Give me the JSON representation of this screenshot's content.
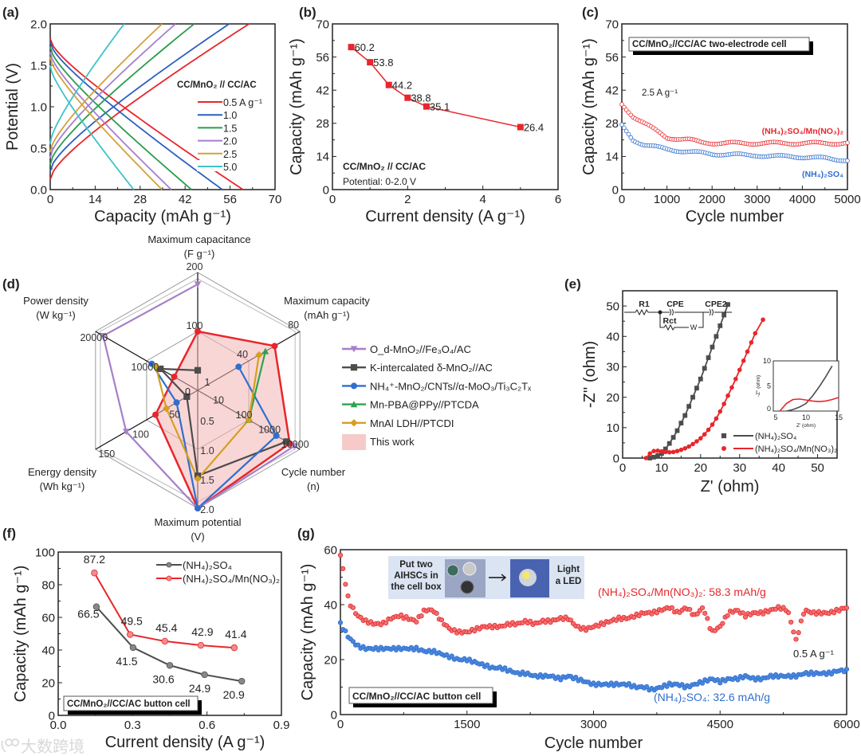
{
  "figure": {
    "panel_labels": [
      "(a)",
      "(b)",
      "(c)",
      "(d)",
      "(e)",
      "(f)",
      "(g)"
    ],
    "watermark": "大数跨境"
  },
  "chart_data": [
    {
      "id": "a",
      "type": "line",
      "xlabel": "Capacity (mAh g⁻¹)",
      "ylabel": "Potential (V)",
      "xlim": [
        0,
        70
      ],
      "ylim": [
        0,
        2
      ],
      "xticks": [
        "0",
        "14",
        "28",
        "42",
        "56",
        "70"
      ],
      "yticks": [
        "0.0",
        "0.5",
        "1.0",
        "1.5",
        "2.0"
      ],
      "legend_title": "CC/MnO₂ // CC/AC",
      "legend_position": "right",
      "series": [
        {
          "name": "0.5  A g⁻¹",
          "color": "#e8262b",
          "charge_start_V": 0.12,
          "charge_end_capacity": 61.9,
          "discharge_start_V": 1.82,
          "discharge_end_capacity": 60.0
        },
        {
          "name": "1.0",
          "color": "#2c5fbf",
          "charge_start_V": 0.22,
          "charge_end_capacity": 55.7,
          "discharge_start_V": 1.78,
          "discharge_end_capacity": 53.6
        },
        {
          "name": "1.5",
          "color": "#2a9d4a",
          "charge_start_V": 0.3,
          "charge_end_capacity": 44.8,
          "discharge_start_V": 1.72,
          "discharge_end_capacity": 44.0
        },
        {
          "name": "2.0",
          "color": "#a57fcf",
          "charge_start_V": 0.38,
          "charge_end_capacity": 39.0,
          "discharge_start_V": 1.66,
          "discharge_end_capacity": 37.7
        },
        {
          "name": "2.5",
          "color": "#d4a13a",
          "charge_start_V": 0.45,
          "charge_end_capacity": 34.8,
          "discharge_start_V": 1.6,
          "discharge_end_capacity": 34.8
        },
        {
          "name": "5.0",
          "color": "#3fc3c9",
          "charge_start_V": 0.55,
          "charge_end_capacity": 23.0,
          "discharge_start_V": 1.5,
          "discharge_end_capacity": 26.0
        }
      ]
    },
    {
      "id": "b",
      "type": "line",
      "xlabel": "Current density (A g⁻¹)",
      "ylabel": "Capacity (mAh g⁻¹)",
      "xlim": [
        0,
        6
      ],
      "ylim": [
        0,
        70
      ],
      "xticks": [
        "0",
        "2",
        "4",
        "6"
      ],
      "yticks": [
        "0",
        "14",
        "28",
        "42",
        "56",
        "70"
      ],
      "x": [
        0.5,
        1.0,
        1.5,
        2.0,
        2.5,
        5.0
      ],
      "values": [
        60.2,
        53.8,
        44.2,
        38.8,
        35.1,
        26.4
      ],
      "data_labels": [
        "60.2",
        "53.8",
        "44.2",
        "38.8",
        "35.1",
        "26.4"
      ],
      "color": "#e8262b",
      "annotations": [
        "CC/MnO₂ // CC/AC",
        "Potential: 0-2.0 V"
      ]
    },
    {
      "id": "c",
      "type": "scatter",
      "xlabel": "Cycle number",
      "ylabel": "Capacity (mAh g⁻¹)",
      "xlim": [
        0,
        5000
      ],
      "ylim": [
        0,
        70
      ],
      "xticks": [
        "0",
        "1000",
        "2000",
        "3000",
        "4000",
        "5000"
      ],
      "yticks": [
        "0",
        "14",
        "28",
        "42",
        "56",
        "70"
      ],
      "x": [
        0,
        250,
        500,
        750,
        1000,
        1250,
        1500,
        1750,
        2000,
        2250,
        2500,
        2750,
        3000,
        3250,
        3500,
        3750,
        4000,
        4250,
        4500,
        4750,
        5000
      ],
      "series": [
        {
          "name": "(NH₄)₂SO₄/Mn(NO₃)₂",
          "color": "#e8262b",
          "values": [
            36,
            31,
            28,
            25,
            22,
            21.5,
            21,
            20,
            19.7,
            19.6,
            19.6,
            19.6,
            19.6,
            19.6,
            19.6,
            19.6,
            19.6,
            19.6,
            19.6,
            19.6,
            19.6
          ]
        },
        {
          "name": "(NH₄)₂SO₄",
          "color": "#2f6fcf",
          "values": [
            27,
            21,
            19,
            18,
            17,
            16.5,
            16,
            15.5,
            15,
            15,
            14.8,
            14.5,
            14.5,
            14.2,
            14,
            14,
            13.8,
            13.5,
            13.2,
            12.8,
            12.5
          ]
        }
      ],
      "annotations": {
        "box": "CC/MnO₂//CC/AC two-electrode cell",
        "rate": "2.5 A g⁻¹"
      }
    },
    {
      "id": "d",
      "type": "radar",
      "center_label": "0",
      "axes": [
        {
          "name": "Maximum capacitance",
          "unit": "(F g⁻¹)",
          "scale": "linear",
          "min": 0,
          "max": 200,
          "ticks": [
            "100",
            "200"
          ]
        },
        {
          "name": "Maximum capacity",
          "unit": "(mAh g⁻¹)",
          "scale": "linear",
          "min": 0,
          "max": 80,
          "ticks": [
            "40",
            "80"
          ]
        },
        {
          "name": "Cycle number",
          "unit": "(n)",
          "scale": "log",
          "min": 1,
          "max": 10000,
          "ticks": [
            "1",
            "10",
            "100",
            "1000",
            "10000"
          ]
        },
        {
          "name": "Maximum potential",
          "unit": "(V)",
          "scale": "linear",
          "min": 0,
          "max": 2,
          "ticks": [
            "0.5",
            "1.0",
            "1.5",
            "2.0"
          ]
        },
        {
          "name": "Energy density",
          "unit": "(Wh kg⁻¹)",
          "scale": "linear",
          "min": 0,
          "max": 150,
          "ticks": [
            "50",
            "100",
            "150"
          ]
        },
        {
          "name": "Power density",
          "unit": "(W kg⁻¹)",
          "scale": "linear",
          "min": 0,
          "max": 20000,
          "ticks": [
            "10000",
            "20000"
          ]
        }
      ],
      "series": [
        {
          "name": "O_d-MnO₂//Fe₃O₄/AC",
          "color": "#a77fc8",
          "marker": "triangle-down",
          "values": [
            180,
            null,
            6000,
            2.0,
            105,
            18500
          ]
        },
        {
          "name": "K-intercalated δ-MnO₂//AC",
          "color": "#4d4d4d",
          "marker": "square",
          "values": [
            34,
            null,
            3000,
            1.45,
            16,
            7300
          ]
        },
        {
          "name": "NH₄⁺-MnO₂/CNTs//α-MoO₃/Ti₃C₂Tₓ",
          "color": "#2f6fcf",
          "marker": "circle",
          "values": [
            null,
            32,
            1200,
            2.0,
            31,
            9000
          ]
        },
        {
          "name": "Mn-PBA@PPy//PTCDA",
          "color": "#2ea24e",
          "marker": "triangle-up",
          "values": [
            null,
            53,
            100,
            null,
            null,
            null
          ]
        },
        {
          "name": "MnAl LDH//PTCDI",
          "color": "#d4a020",
          "marker": "diamond",
          "values": [
            null,
            48,
            100,
            1.5,
            46,
            8200
          ]
        },
        {
          "name": "This work",
          "color": "#e8262b",
          "fill": "#f4b4b4",
          "marker": "circle",
          "values": [
            100,
            60.2,
            4000,
            2.0,
            62,
            4600
          ]
        }
      ],
      "legend_position": "right"
    },
    {
      "id": "e",
      "type": "scatter",
      "xlabel": "Z' (ohm)",
      "ylabel": "-Z'' (ohm)",
      "xlim": [
        0,
        55
      ],
      "ylim": [
        0,
        55
      ],
      "xticks": [
        "0",
        "10",
        "20",
        "30",
        "40",
        "50"
      ],
      "yticks": [
        "0",
        "10",
        "20",
        "30",
        "40",
        "50"
      ],
      "series": [
        {
          "name": "(NH₄)₂SO₄",
          "color": "#4d4d4d",
          "marker": "square",
          "points": [
            [
              7,
              0
            ],
            [
              8,
              0.3
            ],
            [
              9,
              0.8
            ],
            [
              10,
              1.5
            ],
            [
              11,
              3
            ],
            [
              12,
              4.8
            ],
            [
              13,
              6.8
            ],
            [
              14,
              9
            ],
            [
              15,
              11.5
            ],
            [
              16,
              14
            ],
            [
              17,
              17
            ],
            [
              18,
              20
            ],
            [
              19,
              23
            ],
            [
              20,
              26
            ],
            [
              21,
              29.5
            ],
            [
              22,
              33
            ],
            [
              23,
              36.5
            ],
            [
              24,
              40
            ],
            [
              25,
              43.5
            ],
            [
              26,
              47
            ],
            [
              27,
              50.5
            ]
          ]
        },
        {
          "name": "(NH₄)₂SO₄/Mn(NO₃)₂",
          "color": "#e8262b",
          "marker": "circle",
          "points": [
            [
              6,
              0
            ],
            [
              7,
              1.5
            ],
            [
              8,
              2.3
            ],
            [
              9,
              2.4
            ],
            [
              10,
              2.2
            ],
            [
              11,
              2
            ],
            [
              12,
              1.9
            ],
            [
              13,
              2
            ],
            [
              14,
              2.3
            ],
            [
              15,
              2.7
            ],
            [
              16,
              3.2
            ],
            [
              17,
              3.8
            ],
            [
              18,
              4.6
            ],
            [
              19,
              5.5
            ],
            [
              20,
              6.5
            ],
            [
              21,
              7.8
            ],
            [
              22,
              9.3
            ],
            [
              23,
              11
            ],
            [
              24,
              13
            ],
            [
              25,
              15.3
            ],
            [
              26,
              17.8
            ],
            [
              27,
              20.5
            ],
            [
              28,
              23.2
            ],
            [
              29,
              26
            ],
            [
              30,
              29
            ],
            [
              31,
              32
            ],
            [
              32,
              35
            ],
            [
              33,
              38
            ],
            [
              34,
              41
            ],
            [
              36,
              45.5
            ]
          ]
        }
      ],
      "circuit": {
        "labels": [
          "R1",
          "CPE",
          "CPE2",
          "Rct",
          "W"
        ]
      },
      "inset": {
        "xlabel": "Z' (ohm)",
        "ylabel": "-Z'' (ohm)",
        "xlim": [
          5,
          15
        ],
        "ylim": [
          0,
          10
        ],
        "xticks": [
          "5",
          "10",
          "15"
        ],
        "yticks": [
          "0",
          "5",
          "10"
        ]
      }
    },
    {
      "id": "f",
      "type": "line",
      "xlabel": "Current density (A g⁻¹)",
      "ylabel": "Capacity (mAh g⁻¹)",
      "xlim": [
        0,
        0.9
      ],
      "ylim": [
        0,
        100
      ],
      "xticks": [
        "0.0",
        "0.3",
        "0.6",
        "0.9"
      ],
      "yticks": [
        "0",
        "20",
        "40",
        "60",
        "80",
        "100"
      ],
      "series": [
        {
          "name": "(NH₄)₂SO₄",
          "color": "#4d4d4d",
          "x": [
            0.154,
            0.302,
            0.45,
            0.59,
            0.74
          ],
          "values": [
            66.5,
            41.5,
            30.6,
            24.9,
            20.9
          ],
          "data_labels": [
            "66.5",
            "41.5",
            "30.6",
            "24.9",
            "20.9"
          ]
        },
        {
          "name": "(NH₄)₂SO₄/Mn(NO₃)₂",
          "color": "#e8262b",
          "x": [
            0.146,
            0.29,
            0.43,
            0.575,
            0.71
          ],
          "values": [
            87.2,
            49.5,
            45.4,
            42.9,
            41.4
          ],
          "data_labels": [
            "87.2",
            "49.5",
            "45.4",
            "42.9",
            "41.4"
          ]
        }
      ],
      "annotations": {
        "box": "CC/MnO₂//CC/AC button cell"
      },
      "legend_position": "top-right"
    },
    {
      "id": "g",
      "type": "scatter",
      "xlabel": "Cycle number",
      "ylabel": "Capacity (mAh g⁻¹)",
      "xlim": [
        0,
        6000
      ],
      "ylim": [
        0,
        60
      ],
      "xticks": [
        "0",
        "1500",
        "3000",
        "4500",
        "6000"
      ],
      "yticks": [
        "0",
        "20",
        "40",
        "60"
      ],
      "x_start": 0,
      "x_step": 100,
      "series": [
        {
          "name": "(NH₄)₂SO₄/Mn(NO₃)₂",
          "color": "#e8262b",
          "label": "(NH₄)₂SO₄/Mn(NO₃)₂: 58.3 mAh/g",
          "values": [
            58,
            41,
            36,
            34,
            33,
            33,
            35,
            36,
            35,
            34,
            38,
            38,
            34,
            31,
            30,
            30,
            31,
            32,
            32,
            32,
            33,
            33,
            34,
            33,
            34,
            34,
            35,
            35,
            32,
            31,
            32,
            33,
            34,
            35,
            35,
            36,
            37,
            37,
            38,
            39,
            37,
            39,
            36,
            39,
            30,
            32,
            37,
            38,
            36,
            37,
            37,
            38,
            39,
            38,
            27,
            38,
            37,
            37,
            37,
            38,
            39
          ]
        },
        {
          "name": "(NH₄)₂SO₄",
          "color": "#2f6fcf",
          "label": "(NH₄)₂SO₄: 32.6 mAh/g",
          "values": [
            33,
            28,
            25,
            24,
            24,
            24,
            24,
            24,
            24,
            24,
            23,
            23,
            22,
            21,
            20,
            20,
            19,
            18,
            17,
            17,
            16,
            15,
            15,
            14,
            14,
            14,
            13,
            14,
            13,
            12,
            11,
            11,
            11,
            11,
            11,
            10,
            10,
            9,
            10,
            11,
            11,
            10,
            11,
            12,
            13,
            12,
            13,
            13,
            14,
            13,
            13,
            14,
            14,
            14,
            14,
            15,
            15,
            15,
            15,
            16,
            16
          ]
        }
      ],
      "annotations": {
        "box": "CC/MnO₂//CC/AC button cell",
        "rate": "0.5 A g⁻¹"
      },
      "inset_photo": {
        "left_text": [
          "Put two",
          "AIHSCs in",
          "the cell box"
        ],
        "right_text": [
          "Light",
          "a LED"
        ]
      }
    }
  ]
}
